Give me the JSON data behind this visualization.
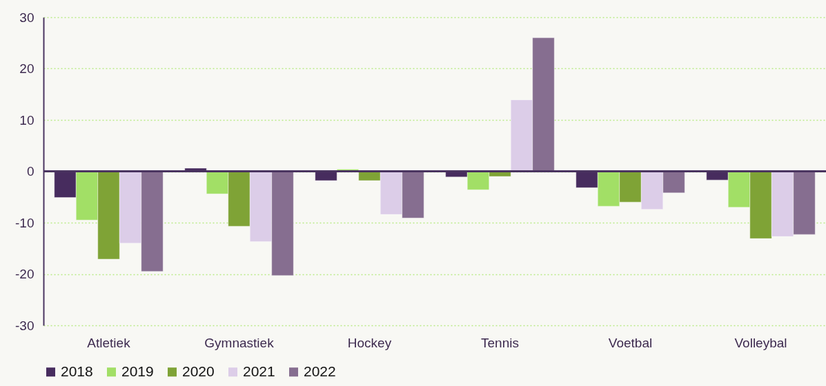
{
  "chart_data": {
    "type": "bar",
    "categories": [
      "Atletiek",
      "Gymnastiek",
      "Hockey",
      "Tennis",
      "Voetbal",
      "Volleybal"
    ],
    "series": [
      {
        "name": "2018",
        "color": "#472c5e",
        "values": [
          -5.1,
          0.6,
          -1.8,
          -1.1,
          -3.2,
          -1.7
        ]
      },
      {
        "name": "2019",
        "color": "#a2df66",
        "values": [
          -9.5,
          -4.4,
          0.4,
          -3.6,
          -6.8,
          -7.0
        ]
      },
      {
        "name": "2020",
        "color": "#7fa336",
        "values": [
          -17.1,
          -10.7,
          -1.8,
          -1.0,
          -6.0,
          -13.1
        ]
      },
      {
        "name": "2021",
        "color": "#dccde8",
        "values": [
          -14.0,
          -13.7,
          -8.4,
          13.9,
          -7.4,
          -12.7
        ]
      },
      {
        "name": "2022",
        "color": "#866e90",
        "values": [
          -19.5,
          -20.3,
          -9.1,
          26.0,
          -4.2,
          -12.3
        ]
      }
    ],
    "ylim": [
      -30,
      30
    ],
    "yticks": [
      -30,
      -20,
      -10,
      0,
      10,
      20,
      30
    ],
    "grid": "y",
    "legend": "bottom"
  }
}
